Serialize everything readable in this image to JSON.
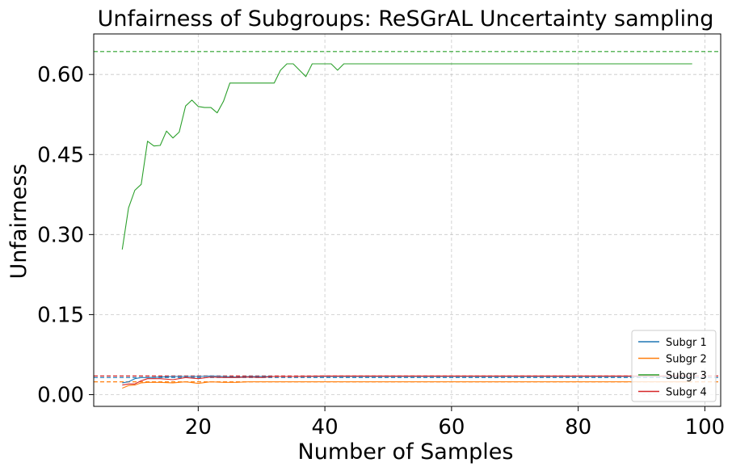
{
  "chart_data": {
    "type": "line",
    "title": "Unfairness of Subgroups: ReSGrAL Uncertainty sampling",
    "xlabel": "Number of Samples",
    "ylabel": "Unfairness",
    "xlim": [
      3.5,
      102.5
    ],
    "ylim": [
      -0.022,
      0.676
    ],
    "xticks": [
      20,
      40,
      60,
      80,
      100
    ],
    "yticks": [
      0.0,
      0.15,
      0.3,
      0.45,
      0.6
    ],
    "ytick_labels": [
      "0.00",
      "0.15",
      "0.30",
      "0.45",
      "0.60"
    ],
    "grid": true,
    "legend_position": "lower-right",
    "series": [
      {
        "name": "Subgr 1",
        "color": "#1f77b4",
        "x": [
          8,
          9,
          10,
          11,
          12,
          14,
          16,
          18,
          20,
          22,
          24,
          26,
          28,
          30,
          35,
          40,
          50,
          60,
          70,
          80,
          90,
          98
        ],
        "y": [
          0.022,
          0.024,
          0.03,
          0.032,
          0.032,
          0.033,
          0.034,
          0.034,
          0.034,
          0.035,
          0.034,
          0.033,
          0.034,
          0.034,
          0.034,
          0.034,
          0.034,
          0.034,
          0.034,
          0.034,
          0.034,
          0.034
        ]
      },
      {
        "name": "Subgr 2",
        "color": "#ff7f0e",
        "x": [
          8,
          9,
          10,
          11,
          12,
          14,
          16,
          18,
          20,
          22,
          24,
          26,
          28,
          30,
          35,
          40,
          50,
          60,
          70,
          80,
          90,
          98
        ],
        "y": [
          0.012,
          0.017,
          0.018,
          0.022,
          0.023,
          0.023,
          0.022,
          0.024,
          0.021,
          0.024,
          0.023,
          0.023,
          0.024,
          0.024,
          0.024,
          0.024,
          0.024,
          0.024,
          0.024,
          0.024,
          0.024,
          0.024
        ]
      },
      {
        "name": "Subgr 3",
        "color": "#2ca02c",
        "x": [
          8,
          9,
          10,
          11,
          12,
          13,
          14,
          15,
          16,
          17,
          18,
          19,
          20,
          21,
          22,
          23,
          24,
          25,
          26,
          27,
          28,
          29,
          30,
          31,
          32,
          33,
          34,
          35,
          36,
          37,
          38,
          39,
          40,
          41,
          42,
          43,
          45,
          50,
          60,
          70,
          80,
          90,
          98
        ],
        "y": [
          0.272,
          0.35,
          0.383,
          0.394,
          0.475,
          0.466,
          0.467,
          0.494,
          0.481,
          0.492,
          0.541,
          0.552,
          0.54,
          0.538,
          0.538,
          0.528,
          0.55,
          0.584,
          0.584,
          0.584,
          0.584,
          0.584,
          0.584,
          0.584,
          0.584,
          0.608,
          0.62,
          0.62,
          0.608,
          0.596,
          0.62,
          0.62,
          0.62,
          0.62,
          0.608,
          0.62,
          0.62,
          0.62,
          0.62,
          0.62,
          0.62,
          0.62,
          0.62
        ]
      },
      {
        "name": "Subgr 4",
        "color": "#d62728",
        "x": [
          8,
          9,
          10,
          11,
          12,
          14,
          16,
          18,
          20,
          22,
          24,
          26,
          28,
          30,
          32,
          35,
          40,
          50,
          60,
          70,
          80,
          90,
          98
        ],
        "y": [
          0.018,
          0.02,
          0.02,
          0.026,
          0.03,
          0.03,
          0.028,
          0.032,
          0.03,
          0.033,
          0.032,
          0.032,
          0.033,
          0.032,
          0.034,
          0.034,
          0.035,
          0.035,
          0.035,
          0.035,
          0.035,
          0.035,
          0.035
        ]
      }
    ],
    "reference_lines": [
      {
        "series": "Subgr 3",
        "y": 0.643,
        "color": "#2ca02c",
        "style": "dashed"
      },
      {
        "series": "Subgr 4",
        "y": 0.035,
        "color": "#d62728",
        "style": "dashed"
      },
      {
        "series": "Subgr 1",
        "y": 0.032,
        "color": "#1f77b4",
        "style": "dashed"
      },
      {
        "series": "Subgr 2",
        "y": 0.024,
        "color": "#ff7f0e",
        "style": "dashed"
      }
    ]
  }
}
